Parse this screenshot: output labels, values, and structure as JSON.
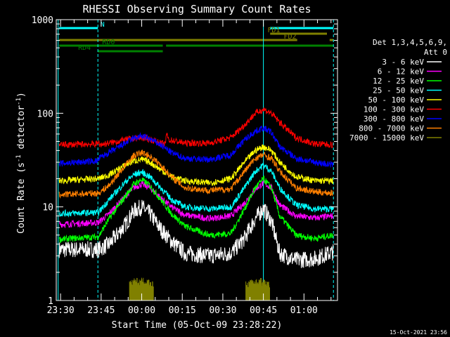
{
  "chart_data": {
    "type": "line",
    "title": "RHESSI Observing Summary Count Rates",
    "xlabel": "Start Time (05-Oct-09 23:28:22)",
    "ylabel_main": "Count Rate (s",
    "ylabel_sup1": "-1",
    "ylabel_mid": " detector",
    "ylabel_sup2": "-1",
    "ylabel_end": ")",
    "yscale": "log",
    "ylim": [
      1,
      1000
    ],
    "xlim_minutes": [
      -31.6,
      72.4
    ],
    "x_ticks": [
      {
        "label": "23:30",
        "t": -30
      },
      {
        "label": "23:45",
        "t": -15
      },
      {
        "label": "00:00",
        "t": 0
      },
      {
        "label": "00:15",
        "t": 15
      },
      {
        "label": "00:30",
        "t": 30
      },
      {
        "label": "00:45",
        "t": 45
      },
      {
        "label": "01:00",
        "t": 60
      }
    ],
    "y_ticks": [
      {
        "label": "1",
        "v": 1
      },
      {
        "label": "10",
        "v": 10
      },
      {
        "label": "100",
        "v": 100
      },
      {
        "label": "1000",
        "v": 1000
      }
    ],
    "legend_header": [
      "Det 1,3,4,5,6,9,",
      "Att 0"
    ],
    "series": [
      {
        "name": "3 - 6 keV",
        "color": "#ffffff",
        "points": [
          [
            -30.5,
            3.5
          ],
          [
            -16,
            3.5
          ],
          [
            -12,
            4.0
          ],
          [
            -6,
            6.5
          ],
          [
            -3,
            9.0
          ],
          [
            0,
            10.0
          ],
          [
            3,
            8.5
          ],
          [
            7,
            5.8
          ],
          [
            11,
            4.3
          ],
          [
            16,
            3.2
          ],
          [
            25,
            3.0
          ],
          [
            33,
            3.2
          ],
          [
            38,
            4.6
          ],
          [
            42,
            7.5
          ],
          [
            45,
            9.6
          ],
          [
            48,
            7.0
          ],
          [
            51,
            3.2
          ],
          [
            57,
            2.7
          ],
          [
            64,
            2.8
          ],
          [
            70.8,
            3.3
          ]
        ]
      },
      {
        "name": "6 - 12 keV",
        "color": "#ff00ff",
        "points": [
          [
            -30.5,
            6.5
          ],
          [
            -16,
            6.8
          ],
          [
            -12,
            8.5
          ],
          [
            -6,
            13.0
          ],
          [
            -3,
            16.0
          ],
          [
            0,
            17.5
          ],
          [
            3,
            16.0
          ],
          [
            7,
            12.5
          ],
          [
            11,
            10.0
          ],
          [
            16,
            8.2
          ],
          [
            25,
            7.5
          ],
          [
            33,
            8.0
          ],
          [
            38,
            11.0
          ],
          [
            42,
            15.5
          ],
          [
            45,
            18.0
          ],
          [
            48,
            16.0
          ],
          [
            51,
            10.5
          ],
          [
            57,
            8.0
          ],
          [
            64,
            7.6
          ],
          [
            70.8,
            8.0
          ]
        ]
      },
      {
        "name": "12 - 25 keV",
        "color": "#00ff00",
        "points": [
          [
            -30.5,
            4.5
          ],
          [
            -16,
            4.8
          ],
          [
            -12,
            7.5
          ],
          [
            -6,
            13.0
          ],
          [
            -3,
            17.5
          ],
          [
            0,
            19.5
          ],
          [
            3,
            17.0
          ],
          [
            7,
            12.0
          ],
          [
            11,
            8.5
          ],
          [
            16,
            6.2
          ],
          [
            25,
            5.0
          ],
          [
            33,
            5.2
          ],
          [
            38,
            9.5
          ],
          [
            42,
            16.0
          ],
          [
            45,
            20.0
          ],
          [
            48,
            16.0
          ],
          [
            51,
            8.0
          ],
          [
            57,
            5.0
          ],
          [
            64,
            4.6
          ],
          [
            70.8,
            5.0
          ]
        ]
      },
      {
        "name": "25 - 50 keV",
        "color": "#00ffff",
        "points": [
          [
            -30.5,
            8.5
          ],
          [
            -16,
            8.7
          ],
          [
            -12,
            12.0
          ],
          [
            -6,
            18.5
          ],
          [
            -3,
            22.0
          ],
          [
            0,
            23.5
          ],
          [
            3,
            21.0
          ],
          [
            7,
            16.0
          ],
          [
            11,
            12.0
          ],
          [
            16,
            10.0
          ],
          [
            25,
            9.5
          ],
          [
            33,
            10.0
          ],
          [
            38,
            16.0
          ],
          [
            42,
            24.0
          ],
          [
            45,
            28.0
          ],
          [
            48,
            24.0
          ],
          [
            51,
            16.0
          ],
          [
            57,
            10.5
          ],
          [
            64,
            9.5
          ],
          [
            70.8,
            9.5
          ]
        ]
      },
      {
        "name": "50 - 100 keV",
        "color": "#ffff00",
        "points": [
          [
            -30.5,
            19
          ],
          [
            -16,
            20
          ],
          [
            -12,
            22
          ],
          [
            -6,
            28
          ],
          [
            -3,
            31
          ],
          [
            0,
            32
          ],
          [
            3,
            30
          ],
          [
            7,
            25
          ],
          [
            11,
            21
          ],
          [
            16,
            19
          ],
          [
            25,
            18
          ],
          [
            33,
            20
          ],
          [
            38,
            30
          ],
          [
            42,
            40
          ],
          [
            45,
            44
          ],
          [
            48,
            40
          ],
          [
            51,
            30
          ],
          [
            57,
            21
          ],
          [
            64,
            19
          ],
          [
            70.8,
            19
          ]
        ]
      },
      {
        "name": "100 - 300 keV",
        "color": "#ff0000",
        "points": [
          [
            -30.5,
            46
          ],
          [
            -16,
            47
          ],
          [
            -15.9,
            62
          ],
          [
            -15.8,
            46
          ],
          [
            -12,
            48
          ],
          [
            -6,
            52
          ],
          [
            -3,
            54
          ],
          [
            0,
            55
          ],
          [
            3,
            53
          ],
          [
            7,
            48
          ],
          [
            8.9,
            46
          ],
          [
            9,
            62
          ],
          [
            10,
            52
          ],
          [
            16,
            48
          ],
          [
            25,
            48
          ],
          [
            33,
            55
          ],
          [
            38,
            75
          ],
          [
            42,
            100
          ],
          [
            45,
            110
          ],
          [
            48,
            100
          ],
          [
            51,
            80
          ],
          [
            57,
            55
          ],
          [
            64,
            47
          ],
          [
            70.8,
            46
          ]
        ]
      },
      {
        "name": "300 - 800 keV",
        "color": "#0000ff",
        "points": [
          [
            -30.5,
            29
          ],
          [
            -16,
            31
          ],
          [
            -15.8,
            33
          ],
          [
            -12,
            38
          ],
          [
            -6,
            48
          ],
          [
            -3,
            54
          ],
          [
            0,
            57
          ],
          [
            3,
            53
          ],
          [
            7,
            46
          ],
          [
            11,
            38
          ],
          [
            16,
            33
          ],
          [
            25,
            32
          ],
          [
            33,
            36
          ],
          [
            38,
            52
          ],
          [
            42,
            64
          ],
          [
            45,
            70
          ],
          [
            48,
            62
          ],
          [
            51,
            44
          ],
          [
            57,
            33
          ],
          [
            64,
            30
          ],
          [
            70.8,
            28
          ]
        ]
      },
      {
        "name": "800 - 7000 keV",
        "color": "#ff7f00",
        "points": [
          [
            -30.5,
            13.5
          ],
          [
            -16,
            14
          ],
          [
            -12,
            17
          ],
          [
            -6,
            28
          ],
          [
            -3,
            35
          ],
          [
            0,
            38
          ],
          [
            3,
            35
          ],
          [
            7,
            28
          ],
          [
            11,
            21
          ],
          [
            16,
            16
          ],
          [
            25,
            15
          ],
          [
            33,
            15.5
          ],
          [
            38,
            24
          ],
          [
            42,
            33
          ],
          [
            45,
            36
          ],
          [
            48,
            33
          ],
          [
            51,
            24
          ],
          [
            57,
            16
          ],
          [
            64,
            14.5
          ],
          [
            70.8,
            14
          ]
        ]
      },
      {
        "name": "7000 - 15000 keV",
        "color": "#808000",
        "points": [
          [
            -4.5,
            1.0
          ],
          [
            -4.5,
            1.7
          ],
          [
            -3,
            1.0
          ],
          [
            -3,
            1.75
          ],
          [
            -1.5,
            1.0
          ],
          [
            -1.5,
            1.7
          ],
          [
            0,
            1.0
          ],
          [
            0,
            1.75
          ],
          [
            1.5,
            1.0
          ],
          [
            1.5,
            1.7
          ],
          [
            3,
            1.0
          ],
          [
            3,
            1.6
          ],
          [
            4.5,
            1.0
          ],
          [
            38.5,
            1.0
          ],
          [
            38.5,
            1.6
          ],
          [
            40,
            1.0
          ],
          [
            40,
            1.75
          ],
          [
            41.5,
            1.0
          ],
          [
            41.5,
            1.7
          ],
          [
            43,
            1.0
          ],
          [
            43,
            1.75
          ],
          [
            44.5,
            1.0
          ],
          [
            44.5,
            1.7
          ],
          [
            46,
            1.0
          ],
          [
            46,
            1.6
          ],
          [
            47.5,
            1.0
          ]
        ]
      }
    ],
    "vlines": [
      {
        "t": -30.9,
        "color": "#00ffff",
        "style": "solid"
      },
      {
        "t": -16.2,
        "color": "#00ffff",
        "style": "dashed"
      },
      {
        "t": 45.0,
        "color": "#00ffff",
        "style": "solid"
      },
      {
        "t": 70.9,
        "color": "#00ffff",
        "style": "dashed"
      }
    ],
    "flag_bars": [
      {
        "label": "N",
        "color": "#00ffff",
        "segments": [
          [
            -30.5,
            -16.2
          ],
          [
            47.5,
            70.9
          ]
        ],
        "level": 0
      },
      {
        "label": "FD1",
        "color": "#808000",
        "segments": [
          [
            47.5,
            68.5
          ]
        ],
        "level": 1
      },
      {
        "label": "FD2",
        "color": "#808000",
        "segments": [
          [
            -30.5,
            57.5
          ],
          [
            69.5,
            70.9
          ]
        ],
        "level": 2
      },
      {
        "label": "RD0",
        "color": "#008000",
        "segments": [
          [
            -30.5,
            70.9
          ]
        ],
        "level": 3,
        "gap": [
          7.8,
          9.0
        ]
      },
      {
        "label": "RD4",
        "color": "#008000",
        "segments": [
          [
            -16.2,
            7.8
          ]
        ],
        "level": 4
      }
    ],
    "timestamp": "15-Oct-2021 23:56"
  }
}
